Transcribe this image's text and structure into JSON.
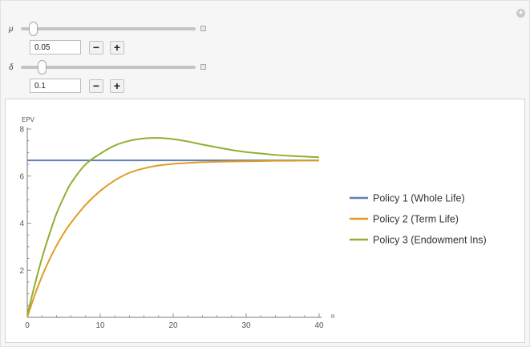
{
  "controls": {
    "mu": {
      "label": "μ",
      "value": "0.05",
      "minus": "−",
      "plus": "+",
      "position": 0.05
    },
    "delta": {
      "label": "δ",
      "value": "0.1",
      "minus": "−",
      "plus": "+",
      "position": 0.1
    }
  },
  "options_icon": "plus-circle-icon",
  "chart_data": {
    "type": "line",
    "xlabel": "n",
    "ylabel": "EPV",
    "xlim": [
      0,
      40
    ],
    "ylim": [
      0,
      8
    ],
    "xticks": [
      "0",
      "10",
      "20",
      "30",
      "40"
    ],
    "yticks": [
      "2",
      "4",
      "6",
      "8"
    ],
    "grid": false,
    "legend_position": "right",
    "series": [
      {
        "name": "Policy 1 (Whole Life)",
        "color": "#5e81b5",
        "x": [
          0,
          40
        ],
        "y": [
          6.67,
          6.67
        ]
      },
      {
        "name": "Policy 2 (Term Life)",
        "color": "#e19c24",
        "x": [
          0,
          1,
          2,
          3,
          4,
          5,
          6,
          8,
          10,
          12,
          14,
          16,
          18,
          20,
          22,
          24,
          26,
          28,
          30,
          32,
          34,
          36,
          38,
          40
        ],
        "y": [
          0,
          0.93,
          1.73,
          2.43,
          3.04,
          3.57,
          4.02,
          4.78,
          5.37,
          5.82,
          6.14,
          6.33,
          6.45,
          6.52,
          6.56,
          6.59,
          6.61,
          6.62,
          6.63,
          6.64,
          6.65,
          6.65,
          6.66,
          6.66
        ]
      },
      {
        "name": "Policy 3 (Endowment Ins)",
        "color": "#8fb032",
        "x": [
          0,
          1,
          2,
          3,
          4,
          5,
          6,
          8,
          10,
          12,
          14,
          16,
          18,
          20,
          22,
          24,
          26,
          28,
          30,
          32,
          34,
          36,
          38,
          40
        ],
        "y": [
          0.1,
          1.35,
          2.5,
          3.5,
          4.4,
          5.1,
          5.7,
          6.5,
          6.95,
          7.3,
          7.5,
          7.6,
          7.62,
          7.57,
          7.47,
          7.34,
          7.22,
          7.11,
          7.02,
          6.96,
          6.9,
          6.86,
          6.83,
          6.8
        ]
      }
    ]
  }
}
